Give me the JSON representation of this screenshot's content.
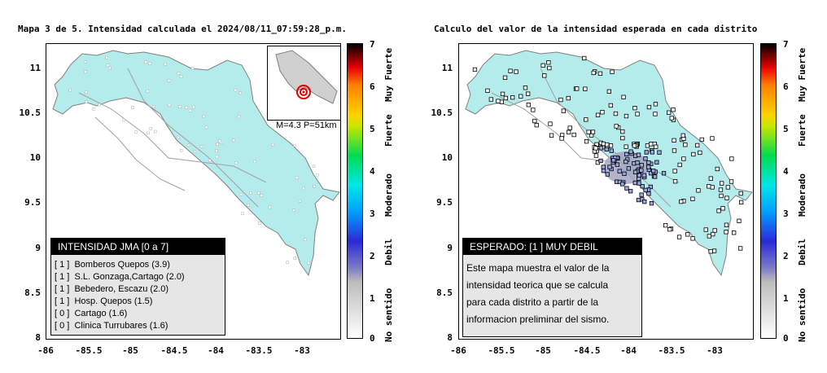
{
  "left": {
    "title": "Mapa 3 de 5. Intensidad calculada el 2024/08/11_07:59:28_p.m.",
    "legend_title": "INTENSIDAD JMA [0 a 7]",
    "stations": [
      {
        "level": "[ 1 ]",
        "name": "Bomberos Quepos (3.9)"
      },
      {
        "level": "[ 1 ]",
        "name": "S.L. Gonzaga,Cartago (2.0)"
      },
      {
        "level": "[ 1 ]",
        "name": "Bebedero, Escazu (2.0)"
      },
      {
        "level": "[ 1 ]",
        "name": "Hosp. Quepos (1.5)"
      },
      {
        "level": "[ 0 ]",
        "name": "Cartago (1.6)"
      },
      {
        "level": "[ 0 ]",
        "name": "Clinica Turrubares (1.6)"
      }
    ],
    "inset_label": "M=4.3 P=51km"
  },
  "right": {
    "title": "Calculo del valor de la intensidad esperada en cada distrito",
    "legend_title": "ESPERADO: [1 ] MUY DEBIL",
    "description_lines": [
      "Este mapa muestra el valor de la",
      "intensidad teorica que se calcula",
      "para cada distrito a partir de la",
      "informacion preliminar del sismo."
    ]
  },
  "axes": {
    "y_ticks": [
      "11",
      "10.5",
      "10",
      "9.5",
      "9",
      "8.5",
      "8"
    ],
    "x_ticks": [
      "-86",
      "-85.5",
      "-85",
      "-84.5",
      "-84",
      "-83.5",
      "-83"
    ],
    "xlim": [
      -86,
      -82.6
    ],
    "ylim": [
      8,
      11.3
    ]
  },
  "colorbar": {
    "ticks": [
      "7",
      "6",
      "5",
      "4",
      "3",
      "2",
      "1",
      "0"
    ],
    "labels": [
      "Muy Fuerte",
      "Fuerte",
      "Moderado",
      "Debil",
      "No sentido"
    ]
  },
  "colors": {
    "land": "#b4ecec",
    "roads": "#a0a0a0",
    "district": "#000000"
  }
}
